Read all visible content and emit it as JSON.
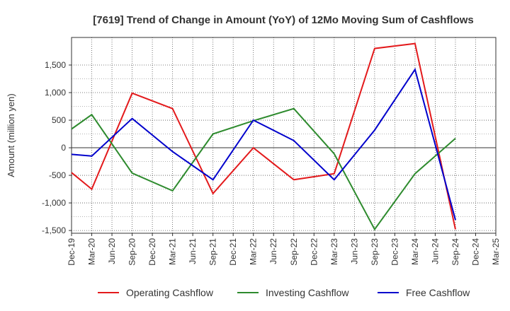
{
  "chart_data": {
    "type": "line",
    "title": "[7619]  Trend of Change in Amount (YoY) of 12Mo Moving Sum of Cashflows",
    "xlabel": "",
    "ylabel": "Amount (million yen)",
    "ylim": [
      -1550,
      2000
    ],
    "yticks": [
      1500,
      1000,
      500,
      0,
      -500,
      -1000,
      -1500
    ],
    "ytick_labels": [
      "1,500",
      "1,000",
      "500",
      "0",
      "-500",
      "-1,000",
      "-1,500"
    ],
    "categories": [
      "Dec-19",
      "Mar-20",
      "Jun-20",
      "Sep-20",
      "Dec-20",
      "Mar-21",
      "Jun-21",
      "Sep-21",
      "Dec-21",
      "Mar-22",
      "Jun-22",
      "Sep-22",
      "Dec-22",
      "Mar-23",
      "Jun-23",
      "Sep-23",
      "Dec-23",
      "Mar-24",
      "Jun-24",
      "Sep-24",
      "Dec-24",
      "Mar-25"
    ],
    "grid": true,
    "legend_position": "bottom",
    "series": [
      {
        "name": "Operating Cashflow",
        "color": "#e31a1c",
        "points": [
          [
            0,
            -450
          ],
          [
            1,
            -750
          ],
          [
            3,
            990
          ],
          [
            5,
            710
          ],
          [
            7,
            -830
          ],
          [
            9,
            0
          ],
          [
            11,
            -580
          ],
          [
            13,
            -470
          ],
          [
            15,
            1800
          ],
          [
            17,
            1890
          ],
          [
            19,
            -1480
          ]
        ]
      },
      {
        "name": "Investing Cashflow",
        "color": "#2e8b2e",
        "points": [
          [
            0,
            340
          ],
          [
            1,
            600
          ],
          [
            3,
            -460
          ],
          [
            5,
            -780
          ],
          [
            7,
            250
          ],
          [
            9,
            490
          ],
          [
            11,
            710
          ],
          [
            13,
            -110
          ],
          [
            15,
            -1480
          ],
          [
            17,
            -470
          ],
          [
            19,
            170
          ]
        ]
      },
      {
        "name": "Free Cashflow",
        "color": "#0000cc",
        "points": [
          [
            0,
            -120
          ],
          [
            1,
            -150
          ],
          [
            3,
            530
          ],
          [
            5,
            -70
          ],
          [
            7,
            -580
          ],
          [
            9,
            500
          ],
          [
            11,
            130
          ],
          [
            13,
            -580
          ],
          [
            15,
            320
          ],
          [
            17,
            1420
          ],
          [
            19,
            -1310
          ]
        ]
      }
    ]
  }
}
